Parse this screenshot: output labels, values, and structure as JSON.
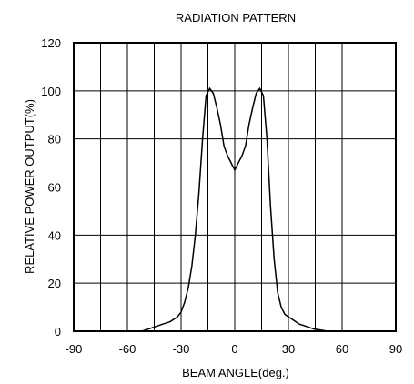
{
  "chart_data": {
    "type": "line",
    "title": "RADIATION PATTERN",
    "xlabel": "BEAM ANGLE(deg.)",
    "ylabel": "RELATIVE POWER OUTPUT(%)",
    "xlim": [
      -90,
      90
    ],
    "ylim": [
      0,
      120
    ],
    "xticks": [
      -90,
      -60,
      -30,
      0,
      30,
      60,
      90
    ],
    "yticks": [
      0,
      20,
      40,
      60,
      80,
      100,
      120
    ],
    "x_gridlines": [
      -90,
      -75,
      -60,
      -45,
      -30,
      -15,
      0,
      15,
      30,
      45,
      60,
      75,
      90
    ],
    "y_gridlines": [
      0,
      20,
      40,
      60,
      80,
      100,
      120
    ],
    "grid": true,
    "series": [
      {
        "x": [
          -52,
          -48,
          -44,
          -40,
          -36,
          -32,
          -30,
          -28,
          -26,
          -24,
          -22,
          -20,
          -18,
          -16,
          -14,
          -12,
          -10,
          -8,
          -6,
          -4,
          -2,
          0,
          2,
          4,
          6,
          8,
          10,
          12,
          14,
          16,
          18,
          20,
          22,
          24,
          26,
          28,
          30,
          32,
          36,
          40,
          44,
          48,
          52
        ],
        "y": [
          0,
          1,
          2,
          3,
          4,
          6,
          8,
          12,
          18,
          27,
          40,
          58,
          80,
          98,
          101,
          99,
          93,
          86,
          77,
          73,
          70,
          67,
          70,
          73,
          77,
          86,
          93,
          99,
          101,
          98,
          80,
          52,
          30,
          16,
          10,
          7,
          6,
          5,
          3,
          2,
          1,
          0.5,
          0
        ]
      }
    ]
  }
}
